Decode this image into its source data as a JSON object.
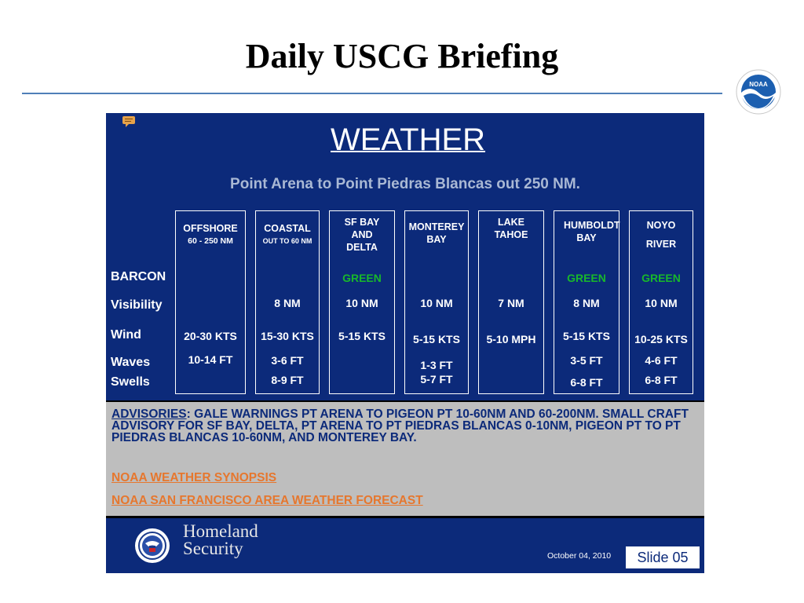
{
  "header": {
    "title": "Daily USCG Briefing",
    "logo_icon": "noaa-logo-icon"
  },
  "slide": {
    "title": "WEATHER",
    "area": "Point Arena to Point Piedras Blancas out 250 NM.",
    "row_labels": [
      "BARCON",
      "Visibility",
      "Wind",
      "Waves",
      "Swells"
    ],
    "columns": [
      {
        "name": "OFFSHORE",
        "sub": "60 - 250 NM",
        "barcon": "",
        "visibility": "",
        "wind": "20-30 KTS",
        "waves": "10-14 FT",
        "swells": ""
      },
      {
        "name": "COASTAL",
        "sub": "OUT TO 60 NM",
        "barcon": "",
        "visibility": "8 NM",
        "wind": "15-30 KTS",
        "waves": "3-6 FT",
        "swells": "8-9 FT"
      },
      {
        "name": "SF BAY AND DELTA",
        "sub": "",
        "barcon": "GREEN",
        "visibility": "10 NM",
        "wind": "5-15 KTS",
        "waves": "",
        "swells": ""
      },
      {
        "name": "MONTEREY BAY",
        "sub": "",
        "barcon": "",
        "visibility": "10 NM",
        "wind": "5-15 KTS",
        "waves": "1-3 FT",
        "swells": "5-7 FT"
      },
      {
        "name": "LAKE TAHOE",
        "sub": "",
        "barcon": "",
        "visibility": "7 NM",
        "wind": "5-10 MPH",
        "waves": "",
        "swells": ""
      },
      {
        "name": "HUMBOLDT BAY",
        "sub": "",
        "barcon": "GREEN",
        "visibility": "8 NM",
        "wind": "5-15 KTS",
        "waves": "3-5 FT",
        "swells": "6-8 FT"
      },
      {
        "name": "NOYO RIVER",
        "sub": "",
        "barcon": "GREEN",
        "visibility": "10 NM",
        "wind": "10-25 KTS",
        "waves": "4-6 FT",
        "swells": "6-8 FT"
      }
    ],
    "advisory_label": "ADVISORIES",
    "advisory_text": ": GALE WARNINGS PT ARENA TO PIGEON PT 10-60NM AND 60-200NM.  SMALL CRAFT ADVISORY FOR SF BAY, DELTA, PT ARENA TO PT PIEDRAS BLANCAS 0-10NM, PIGEON PT TO PT PIEDRAS BLANCAS 10-60NM, AND MONTEREY BAY.",
    "links": [
      "NOAA WEATHER SYNOPSIS",
      "NOAA SAN FRANCISCO AREA WEATHER FORECAST"
    ],
    "footer": {
      "org_line1": "Homeland",
      "org_line2": "Security",
      "date": "October 04, 2010",
      "slide_number": "Slide 05"
    },
    "colors": {
      "background": "#0c2a7a",
      "green": "#18b82a",
      "link": "#e6772e",
      "advisory_bg": "#bebebe"
    }
  }
}
